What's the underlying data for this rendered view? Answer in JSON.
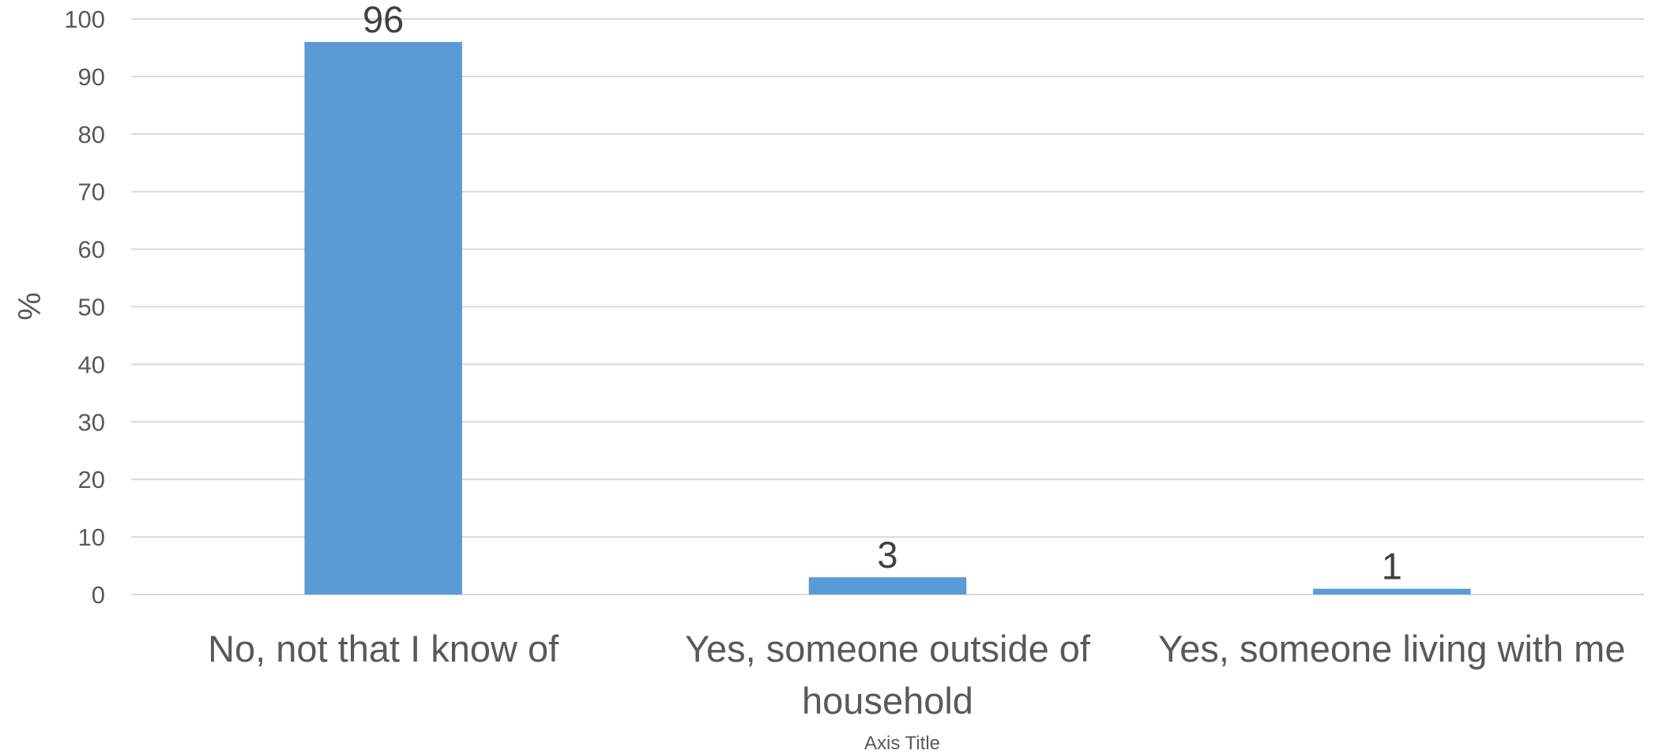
{
  "chart_data": {
    "type": "bar",
    "categories": [
      "No, not that I know of",
      "Yes, someone outside of household",
      "Yes, someone living with me"
    ],
    "values": [
      96,
      3,
      1
    ],
    "data_labels": [
      "96",
      "3",
      "1"
    ],
    "title": "",
    "xlabel": "Axis Title",
    "ylabel": "%",
    "ylim": [
      0,
      100
    ],
    "yticks": [
      "0",
      "10",
      "20",
      "30",
      "40",
      "50",
      "60",
      "70",
      "80",
      "90",
      "100"
    ],
    "grid": true,
    "legend": "none",
    "bar_color": "#5b9bd5"
  }
}
